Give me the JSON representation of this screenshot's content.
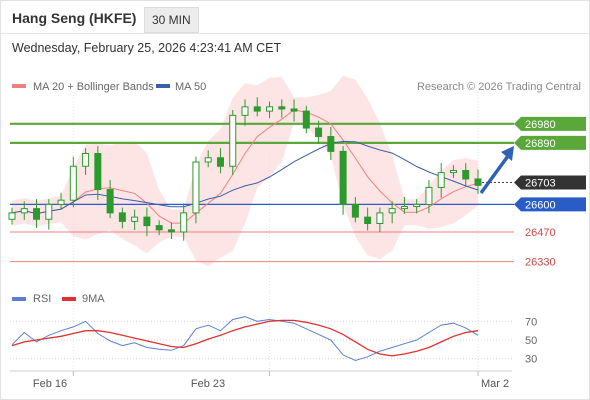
{
  "header": {
    "instrument": "Hang Seng (HKFE)",
    "timeframe": "30 MIN",
    "timestamp": "Wednesday, February 25, 2026 4:23:41 AM CET"
  },
  "legend": {
    "bollinger_label": "MA 20 + Bollinger Bands",
    "ma50_label": "MA 50",
    "copyright": "Research © 2026 Trading Central"
  },
  "rsi_legend": {
    "rsi_label": "RSI",
    "ma_label": "9MA"
  },
  "colors": {
    "bollinger": "#f08080",
    "band_fill": "#fde0e0",
    "ma50": "#3b5ea8",
    "candle": "#2c9a2c",
    "resistance": "#5aa83a",
    "support": "#2a5cc8",
    "target_level": "#ec8080",
    "rsi": "#5b7fd6",
    "rsi_ma": "#e03030",
    "current_price_tag": "#333333",
    "arrow": "#2f62b0"
  },
  "chart_data": [
    {
      "type": "candlestick",
      "panel": "price",
      "y_range": [
        26220,
        27130
      ],
      "x_ticks": [
        "Feb 16",
        "Feb 23",
        "Mar 2"
      ],
      "levels": [
        {
          "value": 26980,
          "label": "26980",
          "kind": "resistance"
        },
        {
          "value": 26890,
          "label": "26890",
          "kind": "resistance"
        },
        {
          "value": 26703,
          "label": "26703",
          "kind": "current"
        },
        {
          "value": 26600,
          "label": "26600",
          "kind": "pivot"
        },
        {
          "value": 26470,
          "label": "26470",
          "kind": "support"
        },
        {
          "value": 26330,
          "label": "26330",
          "kind": "support"
        }
      ],
      "close_series": [
        26560,
        26580,
        26530,
        26600,
        26620,
        26780,
        26840,
        26670,
        26560,
        26520,
        26540,
        26500,
        26480,
        26470,
        26560,
        26800,
        26820,
        26780,
        27020,
        27060,
        27040,
        27060,
        27050,
        27040,
        26960,
        26920,
        26850,
        26600,
        26540,
        26510,
        26560,
        26580,
        26590,
        26600,
        26680,
        26750,
        26760,
        26720,
        26690
      ]
    },
    {
      "type": "line",
      "panel": "rsi",
      "y_ticks": [
        70,
        50,
        30
      ],
      "series": [
        {
          "name": "RSI",
          "values": [
            45,
            58,
            48,
            55,
            60,
            64,
            70,
            57,
            49,
            44,
            47,
            42,
            40,
            39,
            44,
            62,
            66,
            60,
            72,
            75,
            70,
            72,
            70,
            68,
            62,
            56,
            50,
            34,
            28,
            32,
            38,
            42,
            46,
            50,
            58,
            66,
            68,
            63,
            55
          ]
        },
        {
          "name": "9MA",
          "values": [
            44,
            48,
            50,
            52,
            54,
            57,
            60,
            60,
            58,
            55,
            52,
            49,
            46,
            43,
            42,
            46,
            51,
            55,
            60,
            64,
            67,
            70,
            71,
            71,
            69,
            66,
            62,
            56,
            48,
            40,
            35,
            33,
            35,
            38,
            42,
            48,
            54,
            58,
            60
          ]
        }
      ]
    }
  ]
}
